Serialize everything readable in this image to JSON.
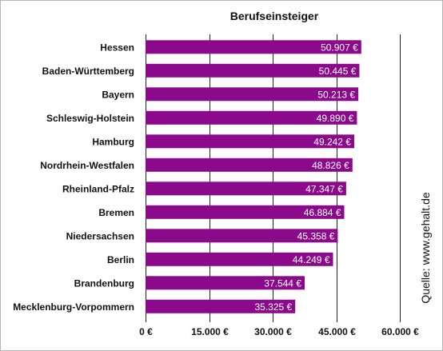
{
  "chart_data": {
    "type": "bar",
    "orientation": "horizontal",
    "title": "Berufseinsteiger",
    "categories": [
      "Hessen",
      "Baden-Württemberg",
      "Bayern",
      "Schleswig-Holstein",
      "Hamburg",
      "Nordrhein-Westfalen",
      "Rheinland-Pfalz",
      "Bremen",
      "Niedersachsen",
      "Berlin",
      "Brandenburg",
      "Mecklenburg-Vorpommern"
    ],
    "values": [
      50907,
      50445,
      50213,
      49890,
      49242,
      48826,
      47347,
      46884,
      45358,
      44249,
      37544,
      35325
    ],
    "value_labels": [
      "50.907 €",
      "50.445 €",
      "50.213 €",
      "49.890 €",
      "49.242 €",
      "48.826 €",
      "47.347 €",
      "46.884 €",
      "45.358 €",
      "44.249 €",
      "37.544 €",
      "35.325 €"
    ],
    "xlim": [
      0,
      60000
    ],
    "x_ticks": [
      0,
      15000,
      30000,
      45000,
      60000
    ],
    "x_tick_labels": [
      "0 €",
      "15.000 €",
      "30.000 €",
      "45.000 €",
      "60.000 €"
    ],
    "grid": "vertical",
    "bar_color": "#8b0a8b",
    "label_color": "#ffffff",
    "grid_color": "#222222",
    "annotation": "Quelle: www.gehalt.de"
  }
}
